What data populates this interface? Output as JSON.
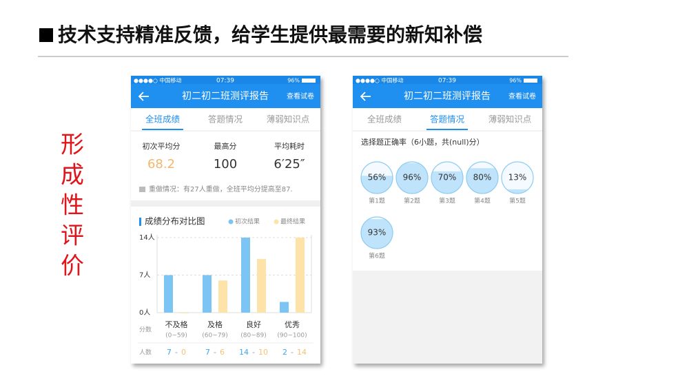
{
  "slide": {
    "title": "技术支持精准反馈，给学生提供最需要的新知补偿",
    "side_label": [
      "形",
      "成",
      "性",
      "评",
      "价"
    ]
  },
  "phone1": {
    "status": {
      "carrier": "●●●●○ 中国移动",
      "time": "07:39",
      "battery": "96%"
    },
    "header": {
      "title": "初二初二班测评报告",
      "action": "查看试卷"
    },
    "tabs": [
      "全班成绩",
      "答题情况",
      "薄弱知识点"
    ],
    "active_tab": 0,
    "stats": [
      {
        "label": "初次平均分",
        "value": 68.2
      },
      {
        "label": "最高分",
        "value": 100
      },
      {
        "label": "平均耗时",
        "value": "6′25″"
      }
    ],
    "redo": "重做情况：有27人重做，全班平均分提高至87.",
    "chart": {
      "type": "bar",
      "title": "成绩分布对比图",
      "categories": [
        "不及格",
        "及格",
        "良好",
        "优秀"
      ],
      "ranges": [
        "(0~59)",
        "(60~79)",
        "(80~89)",
        "(90~100)"
      ],
      "series": [
        {
          "name": "初次结果",
          "color": "#7cc4f4",
          "values": [
            7,
            7,
            14,
            2
          ]
        },
        {
          "name": "最终结果",
          "color": "#fde3a7",
          "values": [
            0,
            6,
            10,
            14
          ]
        }
      ],
      "ylim": [
        0,
        14
      ],
      "yticks": [
        {
          "value": 0,
          "label": "0人"
        },
        {
          "value": 7,
          "label": "7人"
        },
        {
          "value": 14,
          "label": "14人"
        }
      ],
      "row_labels": [
        "分数",
        "人数"
      ],
      "count_separator": "-"
    }
  },
  "phone2": {
    "status": {
      "carrier": "●●●●○ 中国移动",
      "time": "07:39",
      "battery": "96%"
    },
    "header": {
      "title": "初二初二班测评报告",
      "action": "查看试卷"
    },
    "tabs": [
      "全班成绩",
      "答题情况",
      "薄弱知识点"
    ],
    "active_tab": 1,
    "question_title": "选择题正确率（6小题，共(null)分）",
    "questions": {
      "labels": [
        "第1题",
        "第2题",
        "第3题",
        "第4题",
        "第5题",
        "第6题"
      ],
      "values": [
        56,
        96,
        70,
        80,
        13,
        93
      ],
      "value_labels": [
        "56%",
        "96%",
        "70%",
        "80%",
        "13%",
        "93%"
      ]
    }
  }
}
